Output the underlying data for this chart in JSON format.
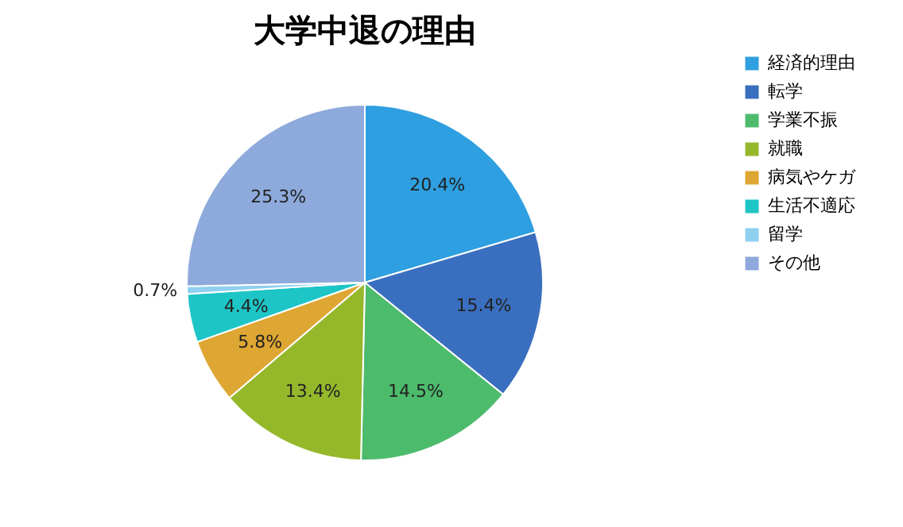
{
  "chart_data": {
    "type": "pie",
    "title": "大学中退の理由",
    "categories": [
      "経済的理由",
      "転学",
      "学業不振",
      "就職",
      "病気やケガ",
      "生活不適応",
      "留学",
      "その他"
    ],
    "values": [
      20.4,
      15.4,
      14.5,
      13.4,
      5.8,
      4.4,
      0.7,
      25.3
    ],
    "colors": [
      "#2e9fe0",
      "#3a6fbf",
      "#4dbb6c",
      "#95b82b",
      "#dea632",
      "#1ec5c6",
      "#8fd0f0",
      "#8eaadc"
    ],
    "value_labels": [
      "20.4%",
      "15.4%",
      "14.5%",
      "13.4%",
      "5.8%",
      "4.4%",
      "0.7%",
      "25.3%"
    ],
    "legend": "right"
  }
}
